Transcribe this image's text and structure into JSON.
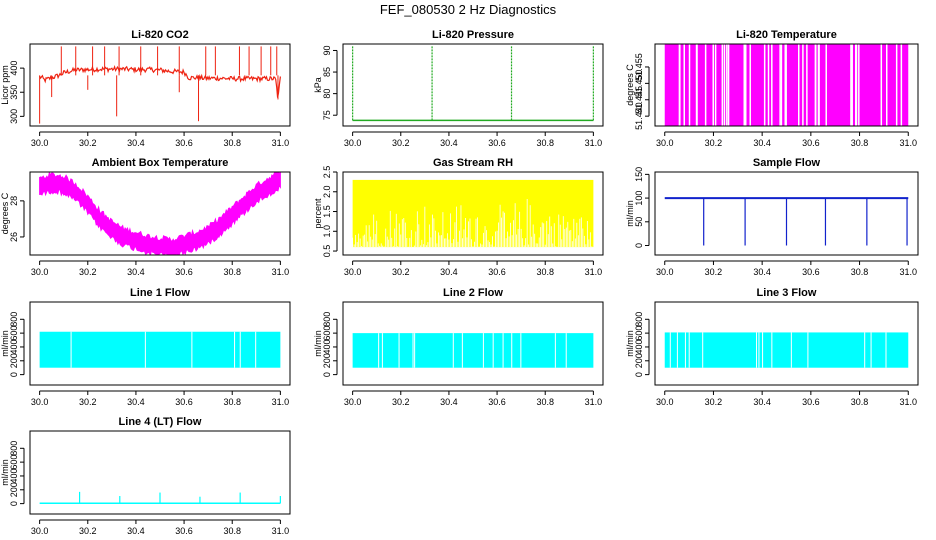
{
  "page": {
    "title": "FEF_080530  2 Hz Diagnostics"
  },
  "chart_data": [
    {
      "type": "line",
      "title": "Li-820 CO2",
      "xlabel": "",
      "ylabel": "Licor ppm",
      "color": "#ee2211",
      "xlim": [
        30.0,
        31.0
      ],
      "ylim": [
        280,
        450
      ],
      "xticks": [
        "30.0",
        "30.2",
        "30.4",
        "30.6",
        "30.8",
        "31.0"
      ],
      "yticks": [
        "300",
        "350",
        "400"
      ],
      "series": [
        {
          "x": [
            30.0,
            30.01,
            30.02,
            30.05,
            30.08,
            30.1,
            30.12,
            30.15,
            30.2,
            30.25,
            30.3,
            30.35,
            30.4,
            30.45,
            30.5,
            30.55,
            30.6,
            30.62,
            30.65,
            30.7,
            30.75,
            30.8,
            30.85,
            30.9,
            30.95,
            30.98,
            30.99,
            31.0
          ],
          "values": [
            382,
            380,
            375,
            380,
            385,
            390,
            393,
            396,
            397,
            398,
            398,
            398,
            397,
            397,
            396,
            393,
            392,
            380,
            380,
            379,
            379,
            378,
            378,
            378,
            378,
            378,
            335,
            380
          ]
        }
      ]
    },
    {
      "type": "line",
      "title": "Li-820 Pressure",
      "xlabel": "",
      "ylabel": "kPa",
      "color": "#22aa22",
      "xlim": [
        30.0,
        31.0
      ],
      "ylim": [
        72.5,
        91.5
      ],
      "xticks": [
        "30.0",
        "30.2",
        "30.4",
        "30.6",
        "30.8",
        "31.0"
      ],
      "yticks": [
        "75",
        "80",
        "85",
        "90"
      ],
      "series": [
        {
          "x": [
            30.0,
            30.2,
            30.4,
            30.6,
            30.8,
            31.0
          ],
          "values": [
            73.8,
            73.8,
            73.8,
            73.8,
            73.8,
            73.8
          ]
        }
      ]
    },
    {
      "type": "area",
      "title": "Li-820 Temperature",
      "xlabel": "",
      "ylabel": "degrees C",
      "color": "#ff00ff",
      "xlim": [
        30.0,
        31.0
      ],
      "ylim": [
        51.437,
        51.462
      ],
      "xticks": [
        "30.0",
        "30.2",
        "30.4",
        "30.6",
        "30.8",
        "31.0"
      ],
      "yticks": [
        "51.440",
        "51.445",
        "51.450",
        "51.455"
      ],
      "series": [
        {
          "x": [
            30.0,
            31.0
          ],
          "values": [
            51.437,
            51.462
          ]
        }
      ]
    },
    {
      "type": "line",
      "title": "Ambient Box Temperature",
      "xlabel": "",
      "ylabel": "degrees C",
      "color": "#ff00ff",
      "xlim": [
        30.0,
        31.0
      ],
      "ylim": [
        25.0,
        29.6
      ],
      "xticks": [
        "30.0",
        "30.2",
        "30.4",
        "30.6",
        "30.8",
        "31.0"
      ],
      "yticks": [
        "26",
        "28"
      ],
      "series": [
        {
          "x": [
            30.0,
            30.05,
            30.1,
            30.15,
            30.2,
            30.25,
            30.3,
            30.35,
            30.4,
            30.45,
            30.5,
            30.55,
            30.6,
            30.65,
            30.7,
            30.75,
            30.8,
            30.85,
            30.9,
            30.95,
            31.0
          ],
          "values": [
            28.8,
            29.0,
            28.9,
            28.5,
            27.8,
            27.0,
            26.4,
            26.0,
            25.8,
            25.6,
            25.5,
            25.4,
            25.6,
            25.8,
            26.1,
            26.6,
            27.2,
            27.8,
            28.4,
            28.8,
            29.2
          ]
        }
      ]
    },
    {
      "type": "area",
      "title": "Gas Stream RH",
      "xlabel": "",
      "ylabel": "percent",
      "color": "#ffff00",
      "xlim": [
        30.0,
        31.0
      ],
      "ylim": [
        0.4,
        2.5
      ],
      "xticks": [
        "30.0",
        "30.2",
        "30.4",
        "30.6",
        "30.8",
        "31.0"
      ],
      "yticks": [
        "0.5",
        "1.0",
        "1.5",
        "2.0",
        "2.5"
      ],
      "series": [
        {
          "x": [
            30.0,
            31.0
          ],
          "values": [
            0.6,
            2.3
          ]
        }
      ]
    },
    {
      "type": "line",
      "title": "Sample Flow",
      "xlabel": "",
      "ylabel": "ml/min",
      "color": "#1122cc",
      "xlim": [
        30.0,
        31.0
      ],
      "ylim": [
        -20,
        155
      ],
      "xticks": [
        "30.0",
        "30.2",
        "30.4",
        "30.6",
        "30.8",
        "31.0"
      ],
      "yticks": [
        "0",
        "50",
        "100",
        "150"
      ],
      "series": [
        {
          "x": [
            30.0,
            30.16,
            30.33,
            30.5,
            30.66,
            30.83,
            31.0
          ],
          "values": [
            100,
            100,
            100,
            100,
            100,
            100,
            100
          ]
        }
      ]
    },
    {
      "type": "area",
      "title": "Line 1 Flow",
      "xlabel": "",
      "ylabel": "ml/min",
      "color": "#00ffff",
      "xlim": [
        30.0,
        31.0
      ],
      "ylim": [
        -150,
        1050
      ],
      "xticks": [
        "30.0",
        "30.2",
        "30.4",
        "30.6",
        "30.8",
        "31.0"
      ],
      "yticks": [
        "0",
        "200",
        "400",
        "600",
        "800"
      ],
      "series": [
        {
          "x": [
            30.0,
            31.0
          ],
          "values": [
            100,
            620
          ]
        }
      ]
    },
    {
      "type": "area",
      "title": "Line 2 Flow",
      "xlabel": "",
      "ylabel": "ml/min",
      "color": "#00ffff",
      "xlim": [
        30.0,
        31.0
      ],
      "ylim": [
        -150,
        1050
      ],
      "xticks": [
        "30.0",
        "30.2",
        "30.4",
        "30.6",
        "30.8",
        "31.0"
      ],
      "yticks": [
        "0",
        "200",
        "400",
        "600",
        "800"
      ],
      "series": [
        {
          "x": [
            30.0,
            31.0
          ],
          "values": [
            100,
            600
          ]
        }
      ]
    },
    {
      "type": "area",
      "title": "Line 3 Flow",
      "xlabel": "",
      "ylabel": "ml/min",
      "color": "#00ffff",
      "xlim": [
        30.0,
        31.0
      ],
      "ylim": [
        -150,
        1050
      ],
      "xticks": [
        "30.0",
        "30.2",
        "30.4",
        "30.6",
        "30.8",
        "31.0"
      ],
      "yticks": [
        "0",
        "200",
        "400",
        "600",
        "800"
      ],
      "series": [
        {
          "x": [
            30.0,
            31.0
          ],
          "values": [
            100,
            610
          ]
        }
      ]
    },
    {
      "type": "line",
      "title": "Line 4 (LT) Flow",
      "xlabel": "",
      "ylabel": "ml/min",
      "color": "#00ffff",
      "xlim": [
        30.0,
        31.0
      ],
      "ylim": [
        -150,
        1050
      ],
      "xticks": [
        "30.0",
        "30.2",
        "30.4",
        "30.6",
        "30.8",
        "31.0"
      ],
      "yticks": [
        "0",
        "200",
        "400",
        "600",
        "800"
      ],
      "series": [
        {
          "x": [
            30.0,
            30.166,
            30.333,
            30.5,
            30.666,
            30.833,
            31.0
          ],
          "values": [
            5,
            5,
            5,
            5,
            5,
            5,
            5
          ]
        }
      ]
    }
  ]
}
